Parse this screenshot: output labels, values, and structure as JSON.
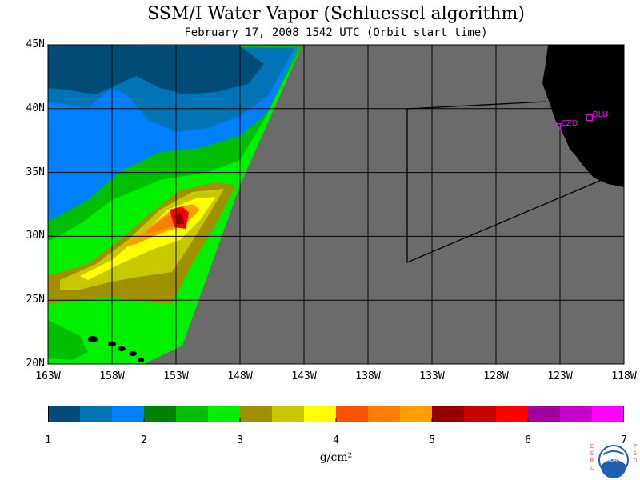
{
  "title": "SSM/I Water Vapor (Schluessel algorithm)",
  "subtitle": "February 17, 2008  1542 UTC  (Orbit start time)",
  "map": {
    "lat_labels": [
      "45N",
      "40N",
      "35N",
      "30N",
      "25N",
      "20N"
    ],
    "lon_labels": [
      "163W",
      "158W",
      "153W",
      "148W",
      "143W",
      "138W",
      "133W",
      "128W",
      "123W",
      "118W"
    ],
    "lat_range": [
      20,
      45
    ],
    "lon_range": [
      -163,
      -118
    ],
    "no_data_color": "#6b6b6b",
    "land_color": "#000000",
    "stations": [
      {
        "label": "CZD",
        "lat": 38.6,
        "lon": -123.2
      },
      {
        "label": "BLU",
        "lat": 39.3,
        "lon": -120.7
      }
    ]
  },
  "colorbar": {
    "unit": "g/cm²",
    "tick_labels": [
      "1",
      "2",
      "3",
      "4",
      "5",
      "6",
      "7"
    ],
    "range": [
      1,
      7
    ],
    "colors": [
      "#004c77",
      "#0074b4",
      "#0080ff",
      "#008200",
      "#00be00",
      "#00f000",
      "#a09000",
      "#c8c800",
      "#ffff00",
      "#ff5000",
      "#ff8000",
      "#ffa000",
      "#960000",
      "#c80000",
      "#ff0000",
      "#a000a0",
      "#c800c8",
      "#ff00ff"
    ]
  },
  "logo": {
    "left_text": "ESRL",
    "right_text": "PSD",
    "center_text": "NOAA"
  }
}
